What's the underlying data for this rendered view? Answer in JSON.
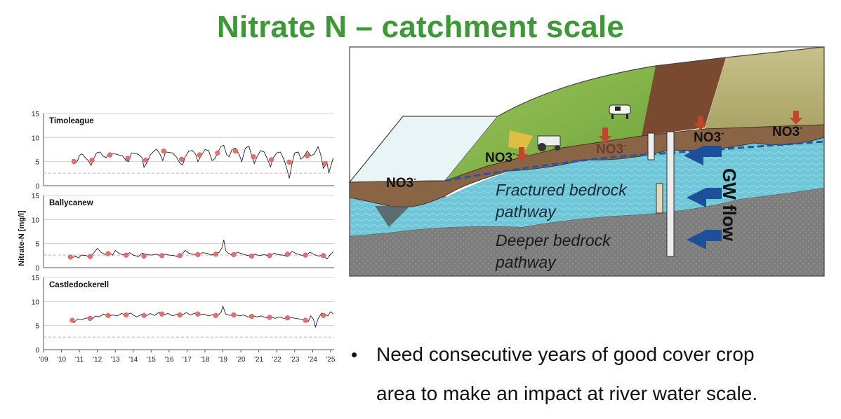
{
  "slide": {
    "title": "Nitrate N – catchment scale",
    "bullet_line1": "Need consecutive years of good cover crop",
    "bullet_line2": "area to make an impact at river water scale."
  },
  "chart_data": {
    "type": "line",
    "ylabel": "Nitrate-N [mg/l]",
    "ylim": [
      0,
      15
    ],
    "yticks": [
      "0",
      "5",
      "10",
      "15"
    ],
    "xlim": [
      2009,
      2025.2
    ],
    "xticks": [
      {
        "label": "'09",
        "x": 2009
      },
      {
        "label": "'10",
        "x": 2010
      },
      {
        "label": "'11",
        "x": 2011
      },
      {
        "label": "'12",
        "x": 2012
      },
      {
        "label": "'13",
        "x": 2013
      },
      {
        "label": "'14",
        "x": 2014
      },
      {
        "label": "'15",
        "x": 2015
      },
      {
        "label": "'16",
        "x": 2016
      },
      {
        "label": "'17",
        "x": 2017
      },
      {
        "label": "'18",
        "x": 2018
      },
      {
        "label": "'19",
        "x": 2019
      },
      {
        "label": "'20",
        "x": 2020
      },
      {
        "label": "'21",
        "x": 2021
      },
      {
        "label": "'22",
        "x": 2022
      },
      {
        "label": "'23",
        "x": 2023
      },
      {
        "label": "'24",
        "x": 2024
      },
      {
        "label": "'25",
        "x": 2025
      }
    ],
    "panels": [
      {
        "name": "Timoleague",
        "reference": 2.6,
        "series": [
          [
            2010.6,
            5.5
          ],
          [
            2010.75,
            4.6
          ],
          [
            2010.9,
            5.2
          ],
          [
            2011.0,
            6.3
          ],
          [
            2011.15,
            6.6
          ],
          [
            2011.3,
            5.9
          ],
          [
            2011.5,
            5.2
          ],
          [
            2011.65,
            4.2
          ],
          [
            2011.8,
            5.6
          ],
          [
            2011.95,
            6.8
          ],
          [
            2012.15,
            7.0
          ],
          [
            2012.3,
            6.2
          ],
          [
            2012.5,
            5.8
          ],
          [
            2012.6,
            6.6
          ],
          [
            2012.8,
            6.6
          ],
          [
            2013.0,
            6.6
          ],
          [
            2013.2,
            6.4
          ],
          [
            2013.4,
            6.2
          ],
          [
            2013.6,
            5.2
          ],
          [
            2013.75,
            5.0
          ],
          [
            2013.9,
            6.8
          ],
          [
            2014.1,
            6.7
          ],
          [
            2014.3,
            6.5
          ],
          [
            2014.5,
            5.8
          ],
          [
            2014.6,
            3.8
          ],
          [
            2014.8,
            5.0
          ],
          [
            2014.95,
            6.4
          ],
          [
            2015.1,
            7.0
          ],
          [
            2015.3,
            7.6
          ],
          [
            2015.5,
            6.5
          ],
          [
            2015.65,
            5.2
          ],
          [
            2015.8,
            7.0
          ],
          [
            2016.0,
            6.9
          ],
          [
            2016.2,
            6.8
          ],
          [
            2016.4,
            6.0
          ],
          [
            2016.6,
            4.7
          ],
          [
            2016.75,
            4.3
          ],
          [
            2016.9,
            6.0
          ],
          [
            2017.1,
            7.2
          ],
          [
            2017.3,
            7.3
          ],
          [
            2017.5,
            6.4
          ],
          [
            2017.6,
            5.0
          ],
          [
            2017.75,
            6.0
          ],
          [
            2018.0,
            7.5
          ],
          [
            2018.2,
            7.3
          ],
          [
            2018.4,
            5.2
          ],
          [
            2018.55,
            5.6
          ],
          [
            2018.7,
            6.8
          ],
          [
            2018.9,
            8.2
          ],
          [
            2019.05,
            8.4
          ],
          [
            2019.2,
            6.5
          ],
          [
            2019.35,
            6.0
          ],
          [
            2019.5,
            7.5
          ],
          [
            2019.7,
            7.8
          ],
          [
            2019.9,
            6.5
          ],
          [
            2020.05,
            5.0
          ],
          [
            2020.25,
            7.8
          ],
          [
            2020.45,
            8.2
          ],
          [
            2020.6,
            6.3
          ],
          [
            2020.75,
            4.6
          ],
          [
            2020.9,
            6.0
          ],
          [
            2021.1,
            7.3
          ],
          [
            2021.3,
            7.0
          ],
          [
            2021.5,
            5.4
          ],
          [
            2021.65,
            3.9
          ],
          [
            2021.8,
            5.8
          ],
          [
            2022.0,
            6.8
          ],
          [
            2022.2,
            7.0
          ],
          [
            2022.4,
            5.5
          ],
          [
            2022.55,
            3.7
          ],
          [
            2022.7,
            1.5
          ],
          [
            2022.85,
            4.5
          ],
          [
            2023.0,
            6.8
          ],
          [
            2023.2,
            7.0
          ],
          [
            2023.35,
            5.5
          ],
          [
            2023.5,
            6.0
          ],
          [
            2023.7,
            7.2
          ],
          [
            2023.9,
            6.2
          ],
          [
            2024.1,
            6.6
          ],
          [
            2024.3,
            8.1
          ],
          [
            2024.45,
            6.5
          ],
          [
            2024.6,
            3.6
          ],
          [
            2024.8,
            4.9
          ],
          [
            2024.9,
            2.6
          ],
          [
            2025.05,
            4.5
          ],
          [
            2025.15,
            5.8
          ]
        ],
        "samples": [
          [
            2010.7,
            5.0
          ],
          [
            2011.7,
            5.3
          ],
          [
            2012.7,
            6.4
          ],
          [
            2013.7,
            5.7
          ],
          [
            2014.7,
            5.3
          ],
          [
            2015.7,
            7.2
          ],
          [
            2016.7,
            5.5
          ],
          [
            2017.7,
            6.4
          ],
          [
            2018.7,
            6.8
          ],
          [
            2019.7,
            7.2
          ],
          [
            2020.7,
            6.0
          ],
          [
            2021.7,
            5.4
          ],
          [
            2022.7,
            4.9
          ],
          [
            2023.7,
            6.2
          ],
          [
            2024.7,
            4.6
          ]
        ]
      },
      {
        "name": "Ballycanew",
        "reference": 2.6,
        "series": [
          [
            2010.5,
            1.9
          ],
          [
            2010.8,
            2.4
          ],
          [
            2010.95,
            2.0
          ],
          [
            2011.1,
            2.6
          ],
          [
            2011.4,
            2.5
          ],
          [
            2011.6,
            2.0
          ],
          [
            2011.85,
            3.3
          ],
          [
            2012.0,
            4.0
          ],
          [
            2012.2,
            3.2
          ],
          [
            2012.45,
            2.7
          ],
          [
            2012.6,
            3.2
          ],
          [
            2012.85,
            2.6
          ],
          [
            2013.0,
            3.6
          ],
          [
            2013.2,
            3.0
          ],
          [
            2013.4,
            2.7
          ],
          [
            2013.6,
            2.6
          ],
          [
            2013.8,
            3.1
          ],
          [
            2014.0,
            2.6
          ],
          [
            2014.3,
            2.3
          ],
          [
            2014.5,
            3.0
          ],
          [
            2014.8,
            2.7
          ],
          [
            2015.0,
            2.6
          ],
          [
            2015.3,
            2.8
          ],
          [
            2015.6,
            2.4
          ],
          [
            2015.8,
            2.8
          ],
          [
            2016.0,
            2.6
          ],
          [
            2016.3,
            2.5
          ],
          [
            2016.5,
            2.2
          ],
          [
            2016.7,
            2.7
          ],
          [
            2016.9,
            3.6
          ],
          [
            2017.1,
            3.0
          ],
          [
            2017.35,
            2.8
          ],
          [
            2017.6,
            2.6
          ],
          [
            2017.85,
            3.1
          ],
          [
            2018.1,
            3.0
          ],
          [
            2018.35,
            2.6
          ],
          [
            2018.6,
            3.0
          ],
          [
            2018.8,
            3.2
          ],
          [
            2018.95,
            4.2
          ],
          [
            2019.05,
            5.8
          ],
          [
            2019.15,
            3.6
          ],
          [
            2019.3,
            3.0
          ],
          [
            2019.55,
            2.5
          ],
          [
            2019.8,
            3.2
          ],
          [
            2020.05,
            2.9
          ],
          [
            2020.3,
            2.6
          ],
          [
            2020.55,
            2.4
          ],
          [
            2020.8,
            2.8
          ],
          [
            2021.0,
            2.5
          ],
          [
            2021.3,
            2.7
          ],
          [
            2021.6,
            2.4
          ],
          [
            2021.85,
            3.0
          ],
          [
            2022.1,
            2.7
          ],
          [
            2022.35,
            2.6
          ],
          [
            2022.6,
            2.3
          ],
          [
            2022.85,
            3.4
          ],
          [
            2023.1,
            2.9
          ],
          [
            2023.35,
            2.6
          ],
          [
            2023.6,
            2.5
          ],
          [
            2023.85,
            3.2
          ],
          [
            2024.1,
            2.7
          ],
          [
            2024.35,
            2.4
          ],
          [
            2024.6,
            2.6
          ],
          [
            2024.8,
            1.8
          ],
          [
            2025.0,
            2.8
          ],
          [
            2025.15,
            3.3
          ]
        ],
        "samples": [
          [
            2010.5,
            2.2
          ],
          [
            2011.6,
            2.3
          ],
          [
            2012.6,
            2.9
          ],
          [
            2013.6,
            2.6
          ],
          [
            2014.6,
            2.4
          ],
          [
            2015.6,
            2.5
          ],
          [
            2016.6,
            2.5
          ],
          [
            2017.6,
            2.7
          ],
          [
            2018.6,
            2.8
          ],
          [
            2019.6,
            2.7
          ],
          [
            2020.6,
            2.4
          ],
          [
            2021.6,
            2.5
          ],
          [
            2022.6,
            2.8
          ],
          [
            2023.6,
            2.6
          ],
          [
            2024.6,
            2.5
          ]
        ]
      },
      {
        "name": "Castledockerell",
        "reference": 2.6,
        "series": [
          [
            2010.5,
            6.0
          ],
          [
            2010.7,
            5.6
          ],
          [
            2010.9,
            6.4
          ],
          [
            2011.1,
            6.2
          ],
          [
            2011.4,
            6.6
          ],
          [
            2011.7,
            6.3
          ],
          [
            2011.9,
            7.0
          ],
          [
            2012.1,
            6.8
          ],
          [
            2012.35,
            7.4
          ],
          [
            2012.6,
            6.9
          ],
          [
            2012.85,
            7.2
          ],
          [
            2013.1,
            7.0
          ],
          [
            2013.35,
            7.5
          ],
          [
            2013.6,
            7.2
          ],
          [
            2013.85,
            7.6
          ],
          [
            2014.0,
            7.2
          ],
          [
            2014.2,
            6.8
          ],
          [
            2014.45,
            7.3
          ],
          [
            2014.7,
            7.0
          ],
          [
            2014.95,
            7.5
          ],
          [
            2015.2,
            7.1
          ],
          [
            2015.45,
            7.8
          ],
          [
            2015.7,
            7.3
          ],
          [
            2015.95,
            7.5
          ],
          [
            2016.2,
            7.0
          ],
          [
            2016.45,
            7.4
          ],
          [
            2016.7,
            7.1
          ],
          [
            2016.95,
            7.7
          ],
          [
            2017.2,
            7.2
          ],
          [
            2017.45,
            7.6
          ],
          [
            2017.7,
            7.2
          ],
          [
            2017.95,
            7.4
          ],
          [
            2018.2,
            7.0
          ],
          [
            2018.45,
            7.3
          ],
          [
            2018.7,
            7.0
          ],
          [
            2018.9,
            7.8
          ],
          [
            2019.0,
            9.0
          ],
          [
            2019.15,
            7.4
          ],
          [
            2019.4,
            7.1
          ],
          [
            2019.65,
            7.4
          ],
          [
            2019.9,
            7.0
          ],
          [
            2020.15,
            7.2
          ],
          [
            2020.4,
            6.8
          ],
          [
            2020.65,
            7.1
          ],
          [
            2020.9,
            6.8
          ],
          [
            2021.15,
            7.0
          ],
          [
            2021.4,
            6.6
          ],
          [
            2021.65,
            6.9
          ],
          [
            2021.9,
            6.5
          ],
          [
            2022.15,
            6.8
          ],
          [
            2022.4,
            6.5
          ],
          [
            2022.65,
            6.8
          ],
          [
            2022.9,
            6.6
          ],
          [
            2023.2,
            6.4
          ],
          [
            2023.5,
            6.3
          ],
          [
            2023.75,
            5.8
          ],
          [
            2023.9,
            7.0
          ],
          [
            2024.05,
            6.3
          ],
          [
            2024.15,
            4.7
          ],
          [
            2024.3,
            6.4
          ],
          [
            2024.5,
            7.6
          ],
          [
            2024.7,
            7.3
          ],
          [
            2024.85,
            7.0
          ],
          [
            2025.0,
            7.9
          ],
          [
            2025.15,
            7.4
          ]
        ],
        "samples": [
          [
            2010.6,
            6.1
          ],
          [
            2011.6,
            6.5
          ],
          [
            2012.6,
            7.1
          ],
          [
            2013.6,
            7.2
          ],
          [
            2014.6,
            7.1
          ],
          [
            2015.6,
            7.4
          ],
          [
            2016.6,
            7.2
          ],
          [
            2017.6,
            7.4
          ],
          [
            2018.6,
            7.1
          ],
          [
            2019.6,
            7.2
          ],
          [
            2020.6,
            6.9
          ],
          [
            2021.6,
            6.7
          ],
          [
            2022.6,
            6.6
          ],
          [
            2023.6,
            6.1
          ],
          [
            2024.6,
            7.1
          ]
        ]
      }
    ]
  },
  "diagram": {
    "labels": {
      "no3_water": "NO3",
      "no3_field": "NO3",
      "no3_mid": "NO3",
      "no3_right1": "NO3",
      "no3_right2": "NO3",
      "superscript": "-",
      "fractured_1": "Fractured bedrock",
      "fractured_2": "pathway",
      "deeper_1": "Deeper bedrock",
      "deeper_2": "pathway",
      "gw_flow": "GW flow"
    }
  }
}
